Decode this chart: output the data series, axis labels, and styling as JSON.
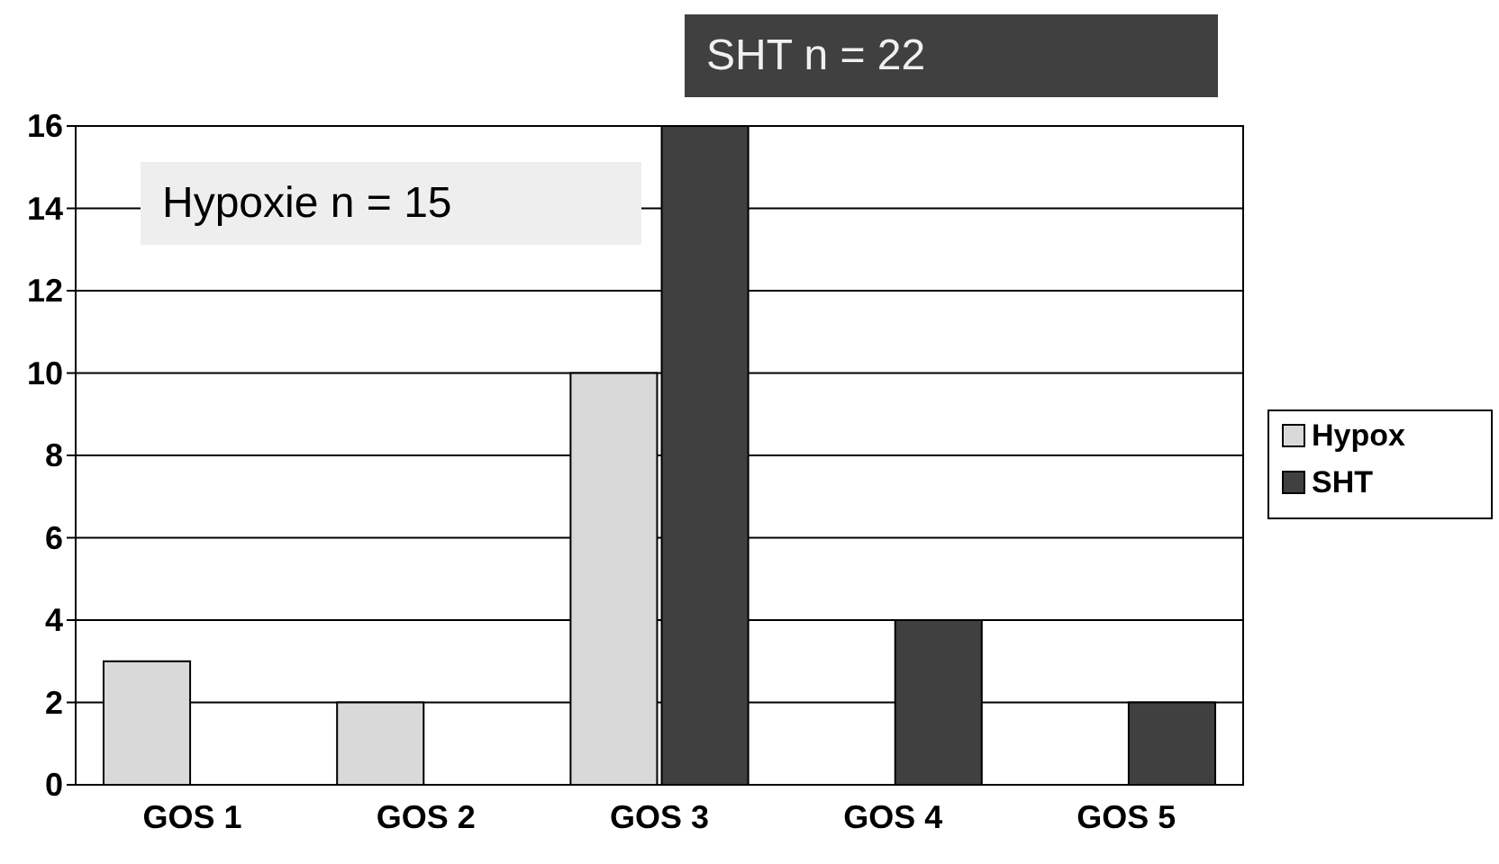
{
  "chart_data": {
    "type": "bar",
    "categories": [
      "GOS 1",
      "GOS 2",
      "GOS 3",
      "GOS 4",
      "GOS 5"
    ],
    "series": [
      {
        "name": "Hypox",
        "color": "#d9d9d9",
        "values": [
          3,
          2,
          10,
          0,
          0
        ]
      },
      {
        "name": "SHT",
        "color": "#404040",
        "values": [
          0,
          0,
          16,
          4,
          2
        ]
      }
    ],
    "ylim": [
      0,
      16
    ],
    "yticks": [
      0,
      2,
      4,
      6,
      8,
      10,
      12,
      14,
      16
    ],
    "grid": "y",
    "legend": "right",
    "annotations": [
      "SHT n = 22",
      "Hypoxie n = 15"
    ]
  }
}
